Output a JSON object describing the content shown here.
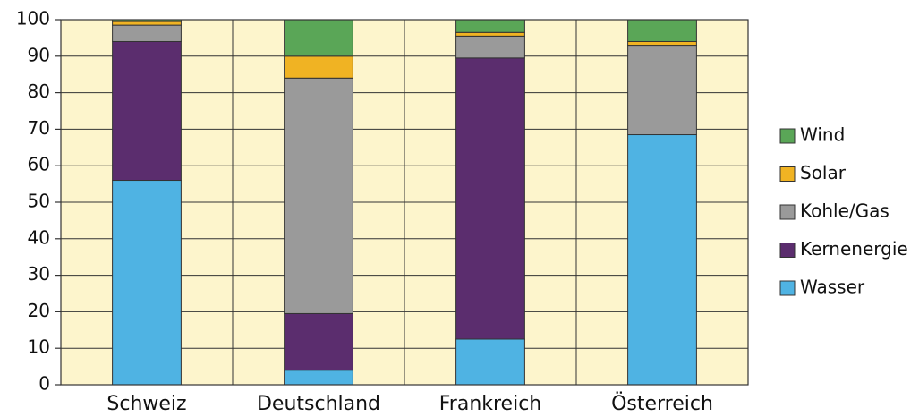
{
  "chart_data": {
    "type": "stacked_bar",
    "categories": [
      "Schweiz",
      "Deutschland",
      "Frankreich",
      "Österreich"
    ],
    "series": [
      {
        "name": "Wasser",
        "color": "#4fb3e3",
        "values": [
          56,
          4,
          12.5,
          68.5
        ]
      },
      {
        "name": "Kernenergie",
        "color": "#5b2d6e",
        "values": [
          38,
          15.5,
          77,
          0
        ]
      },
      {
        "name": "Kohle/Gas",
        "color": "#9a9a9a",
        "values": [
          4.5,
          64.5,
          6,
          24.5
        ]
      },
      {
        "name": "Solar",
        "color": "#f0b323",
        "values": [
          1,
          6,
          1,
          1
        ]
      },
      {
        "name": "Wind",
        "color": "#5aa657",
        "values": [
          0.5,
          10,
          3.5,
          6
        ]
      }
    ],
    "ylim": [
      0,
      100
    ],
    "yticks": [
      0,
      10,
      20,
      30,
      40,
      50,
      60,
      70,
      80,
      90,
      100
    ],
    "grid": true,
    "legend": "right",
    "background": "#fdf5cc"
  }
}
